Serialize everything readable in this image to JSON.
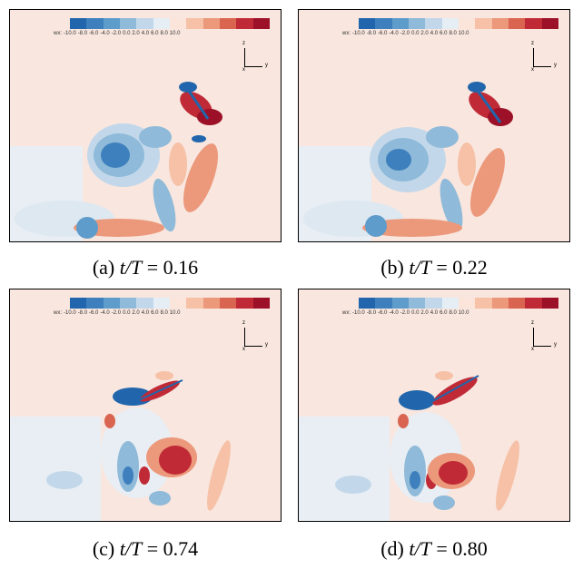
{
  "colorbar": {
    "variable_label": "wx:",
    "ticks": [
      "-10.0",
      "-8.0",
      "-6.0",
      "-4.0",
      "-2.0",
      "0.0",
      "2.0",
      "4.0",
      "6.0",
      "8.0",
      "10.0"
    ],
    "colors": [
      "#2166ac",
      "#3d80bd",
      "#5e9ccb",
      "#8fbad9",
      "#c2d8ea",
      "#e6eef5",
      "#fbe4d9",
      "#f6c1a6",
      "#ec987a",
      "#d9644f",
      "#c02a36",
      "#9c1127"
    ]
  },
  "axes_triad": {
    "z_label": "z",
    "x_label": "x",
    "y_label": "y"
  },
  "panels": [
    {
      "caption_prefix": "(a) ",
      "caption_var": "t/T",
      "caption_eq": " = ",
      "caption_value": "0.16"
    },
    {
      "caption_prefix": "(b) ",
      "caption_var": "t/T",
      "caption_eq": " = ",
      "caption_value": "0.22"
    },
    {
      "caption_prefix": "(c) ",
      "caption_var": "t/T",
      "caption_eq": " = ",
      "caption_value": "0.74"
    },
    {
      "caption_prefix": "(d) ",
      "caption_var": "t/T",
      "caption_eq": " = ",
      "caption_value": "0.80"
    }
  ]
}
